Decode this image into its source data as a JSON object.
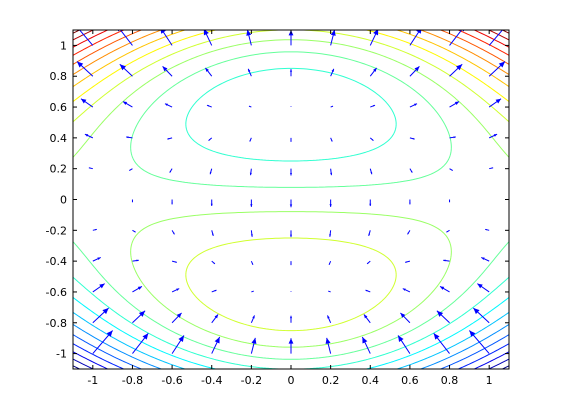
{
  "chart_data": {
    "type": "contour",
    "title": "",
    "xlabel": "",
    "ylabel": "",
    "xlim": [
      -1.1,
      1.1
    ],
    "ylim": [
      -1.1,
      1.1
    ],
    "xticks": [
      -1,
      -0.8,
      -0.6,
      -0.4,
      -0.2,
      0,
      0.2,
      0.4,
      0.6,
      0.8,
      1
    ],
    "yticks": [
      -1,
      -0.8,
      -0.6,
      -0.4,
      -0.2,
      0,
      0.2,
      0.4,
      0.6,
      0.8,
      1
    ],
    "xtick_labels": [
      "-1",
      "-0.8",
      "-0.6",
      "-0.4",
      "-0.2",
      "0",
      "0.2",
      "0.4",
      "0.6",
      "0.8",
      "1"
    ],
    "ytick_labels": [
      "-1",
      "-0.8",
      "-0.6",
      "-0.4",
      "-0.2",
      "0",
      "0.2",
      "0.4",
      "0.6",
      "0.8",
      "1"
    ],
    "grid": false,
    "legend": "none",
    "contour_levels": 20,
    "colormap": "jet",
    "field": "stream function of a double-vortex flow: contours of Z = y*(x^2 + y^2 - 1), with quiver arrows of the gradient",
    "quiver_color": "#0000ff",
    "quiver_grid_x": [
      -1.0,
      -0.8,
      -0.6,
      -0.4,
      -0.2,
      0.0,
      0.2,
      0.4,
      0.6,
      0.8,
      1.0
    ],
    "quiver_grid_y": [
      -1.0,
      -0.8,
      -0.6,
      -0.4,
      -0.2,
      0.0,
      0.2,
      0.4,
      0.6,
      0.8,
      1.0
    ]
  }
}
